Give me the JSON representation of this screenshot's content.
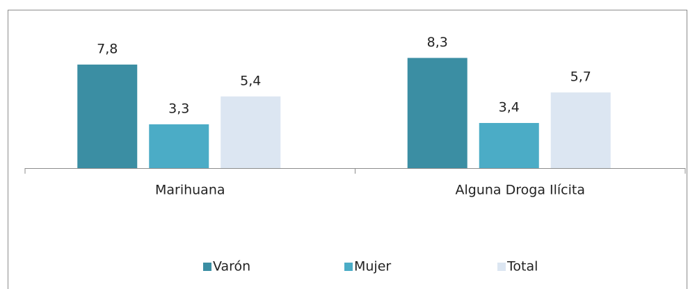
{
  "chart_data": {
    "type": "bar",
    "categories": [
      "Marihuana",
      "Alguna Droga Ilícita"
    ],
    "series": [
      {
        "name": "Varón",
        "color": "#3b8ea3",
        "values": [
          7.8,
          8.3
        ],
        "value_labels": [
          "7,8",
          "8,3"
        ]
      },
      {
        "name": "Mujer",
        "color": "#4bacc6",
        "values": [
          3.3,
          3.4
        ],
        "value_labels": [
          "3,3",
          "3,4"
        ]
      },
      {
        "name": "Total",
        "color": "#dce6f2",
        "values": [
          5.4,
          5.7
        ],
        "value_labels": [
          "5,4",
          "5,7"
        ]
      }
    ],
    "ylim": [
      0,
      9
    ],
    "legend": "bottom"
  }
}
